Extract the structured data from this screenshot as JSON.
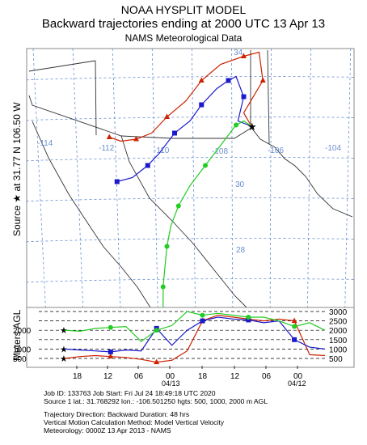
{
  "header": {
    "line1": "NOAA HYSPLIT MODEL",
    "line2": "Backward trajectories ending at 2000 UTC 13 Apr 13",
    "line3": "NAMS Meteorological Data"
  },
  "side_labels": {
    "source": "Source ★ at   31.77 N   106.50 W",
    "meters": "Meters AGL"
  },
  "footer": {
    "line1": "Job ID: 133763              Job Start: Fri Jul 24 18:49:18 UTC 2020",
    "line2": "Source 1 lat.: 31.768292   lon.: -106.501250   hgts: 500, 1000, 2000 m AGL",
    "line3": "Trajectory Direction: Backward      Duration: 48 hrs",
    "line4": "Vertical Motion Calculation Method:       Model Vertical Velocity",
    "line5": "Meteorology: 0000Z 13 Apr 2013 - NAMS"
  },
  "colors": {
    "red": "#cc2200",
    "blue": "#1a1acc",
    "green": "#22cc22",
    "grid": "#6a8fd0",
    "border": "#8a8a8a"
  },
  "chart_data": [
    {
      "type": "line",
      "title": "Backward trajectories ending at 2000 UTC 13 Apr 13",
      "lon_ticks": [
        "-114",
        "-112",
        "-110",
        "-108",
        "-106",
        "-104"
      ],
      "lat_ticks": [
        "34",
        "30",
        "28"
      ],
      "source": {
        "lat": 31.77,
        "lon": -106.5
      },
      "series": [
        {
          "name": "500",
          "color": "#cc2200",
          "marker": "triangle",
          "lon": [
            -106.5,
            -106.7,
            -106.2,
            -106.3,
            -106.7,
            -107.3,
            -107.8,
            -108.2,
            -108.7,
            -109.1,
            -109.5,
            -109.9,
            -110.2
          ],
          "lat": [
            31.77,
            32.1,
            32.9,
            33.6,
            33.5,
            33.3,
            32.9,
            32.4,
            32.0,
            31.6,
            31.45,
            31.4,
            31.5
          ]
        },
        {
          "name": "1000",
          "color": "#1a1acc",
          "marker": "square",
          "lon": [
            -106.5,
            -106.85,
            -106.7,
            -106.9,
            -107.1,
            -107.4,
            -107.8,
            -108.1,
            -108.5,
            -108.9,
            -109.2,
            -109.6,
            -110.0
          ],
          "lat": [
            31.77,
            31.9,
            32.5,
            33.0,
            32.9,
            32.7,
            32.3,
            31.9,
            31.6,
            31.1,
            30.8,
            30.5,
            30.4
          ]
        },
        {
          "name": "2000",
          "color": "#22cc22",
          "marker": "circle",
          "lon": [
            -106.5,
            -106.7,
            -106.9,
            -107.3,
            -107.7,
            -108.1,
            -108.4,
            -108.6,
            -108.7,
            -108.75,
            -108.8,
            -108.8,
            -108.8
          ],
          "lat": [
            31.77,
            31.9,
            31.8,
            31.3,
            30.8,
            30.3,
            29.8,
            29.3,
            28.8,
            28.3,
            27.8,
            27.4,
            27.0
          ]
        }
      ]
    },
    {
      "type": "line",
      "ylabel": "Meters AGL",
      "yticks": [
        500,
        1000,
        1500,
        2000,
        2500,
        3000
      ],
      "xticks": [
        "18",
        "12",
        "06",
        "00",
        "18",
        "12",
        "06",
        "00"
      ],
      "date_labels": [
        "04/13",
        "04/12"
      ],
      "series": [
        {
          "name": "500",
          "color": "#cc2200",
          "marker": "triangle",
          "values": [
            500,
            600,
            650,
            600,
            550,
            450,
            300,
            400,
            900,
            2500,
            2800,
            2700,
            2600,
            2500,
            2600,
            2500,
            700,
            650
          ]
        },
        {
          "name": "1000",
          "color": "#1a1acc",
          "marker": "square",
          "values": [
            1000,
            950,
            900,
            850,
            950,
            900,
            2100,
            1200,
            2000,
            2500,
            2700,
            2600,
            2550,
            2400,
            2500,
            1500,
            1100,
            1000
          ]
        },
        {
          "name": "2000",
          "color": "#22cc22",
          "marker": "circle",
          "values": [
            2000,
            1950,
            2100,
            2150,
            2200,
            1400,
            2000,
            2250,
            3000,
            2800,
            2900,
            2800,
            2700,
            2700,
            2500,
            2200,
            2400,
            2000
          ]
        }
      ]
    }
  ]
}
